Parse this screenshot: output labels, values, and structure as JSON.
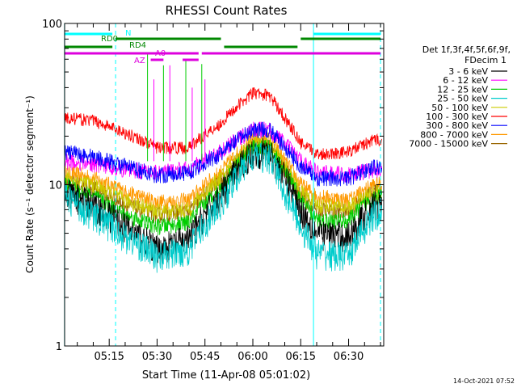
{
  "chart_data": {
    "type": "line",
    "title": "RHESSI Count Rates",
    "xlabel": "Start Time (11-Apr-08 05:01:02)",
    "ylabel": "Count Rate (s⁻¹ detector segment⁻¹)",
    "y_scale": "log",
    "ylim": [
      1,
      100
    ],
    "y_tick_labels": [
      "1",
      "10",
      "100"
    ],
    "x_range": [
      "05:01",
      "06:41"
    ],
    "x_tick_labels": [
      "05:15",
      "05:30",
      "05:45",
      "06:00",
      "06:15",
      "06:30"
    ],
    "legend_title": [
      "Det 1f,3f,4f,5f,6f,9f,",
      "FDecim 1"
    ],
    "legend_placement": "right",
    "series": [
      {
        "name": "3 - 6 keV",
        "color": "#000000",
        "x": [
          "05:01",
          "05:10",
          "05:20",
          "05:30",
          "05:40",
          "05:50",
          "06:00",
          "06:05",
          "06:10",
          "06:15",
          "06:20",
          "06:30",
          "06:38"
        ],
        "y": [
          9.0,
          7.5,
          5.5,
          4.0,
          4.6,
          8.5,
          16,
          16,
          11,
          7.0,
          5.0,
          4.8,
          7.5
        ]
      },
      {
        "name": "6 - 12 keV",
        "color": "#ff00ff",
        "x": [
          "05:01",
          "05:10",
          "05:20",
          "05:30",
          "05:40",
          "05:50",
          "06:00",
          "06:05",
          "06:10",
          "06:15",
          "06:20",
          "06:30",
          "06:38"
        ],
        "y": [
          14,
          13.5,
          12.5,
          12,
          12.5,
          16,
          22,
          22,
          18,
          14,
          12,
          11.5,
          12.5
        ]
      },
      {
        "name": "12 - 25 keV",
        "color": "#00cc00",
        "x": [
          "05:01",
          "05:10",
          "05:20",
          "05:30",
          "05:40",
          "05:50",
          "06:00",
          "06:05",
          "06:10",
          "06:15",
          "06:20",
          "06:30",
          "06:38"
        ],
        "y": [
          10,
          8.5,
          6.5,
          5.5,
          5.8,
          9.5,
          17,
          17,
          12,
          8.0,
          6.0,
          6.0,
          8.5
        ]
      },
      {
        "name": "25 - 50 keV",
        "color": "#00cccc",
        "x": [
          "05:01",
          "05:10",
          "05:20",
          "05:30",
          "05:40",
          "05:50",
          "06:00",
          "06:05",
          "06:10",
          "06:15",
          "06:20",
          "06:30",
          "06:38"
        ],
        "y": [
          8.5,
          6.5,
          4.8,
          3.6,
          4.0,
          7.5,
          15,
          15,
          9.0,
          5.5,
          3.8,
          3.6,
          6.5
        ]
      },
      {
        "name": "50 - 100 keV",
        "color": "#cccc00",
        "x": [
          "05:01",
          "05:10",
          "05:20",
          "05:30",
          "05:40",
          "05:50",
          "06:00",
          "06:05",
          "06:10",
          "06:15",
          "06:20",
          "06:30",
          "06:38"
        ],
        "y": [
          11,
          10,
          8.0,
          6.8,
          7.0,
          11,
          18,
          18,
          13,
          9.0,
          7.5,
          7.2,
          9.0
        ]
      },
      {
        "name": "100 - 300 keV",
        "color": "#ff0000",
        "x": [
          "05:01",
          "05:10",
          "05:20",
          "05:30",
          "05:40",
          "05:50",
          "06:00",
          "06:05",
          "06:10",
          "06:15",
          "06:20",
          "06:30",
          "06:38"
        ],
        "y": [
          26,
          25,
          21,
          17,
          17,
          24,
          37,
          36,
          26,
          18,
          15.5,
          16,
          19
        ]
      },
      {
        "name": "300 - 800 keV",
        "color": "#0000ff",
        "x": [
          "05:01",
          "05:10",
          "05:20",
          "05:30",
          "05:40",
          "05:50",
          "06:00",
          "06:05",
          "06:10",
          "06:15",
          "06:20",
          "06:30",
          "06:38"
        ],
        "y": [
          16,
          15,
          13,
          11.5,
          12,
          15.5,
          22,
          22,
          17,
          13,
          11,
          11,
          13
        ]
      },
      {
        "name": "800 - 7000 keV",
        "color": "#ff9900",
        "x": [
          "05:01",
          "05:10",
          "05:20",
          "05:30",
          "05:40",
          "05:50",
          "06:00",
          "06:05",
          "06:10",
          "06:15",
          "06:20",
          "06:30",
          "06:38"
        ],
        "y": [
          12,
          11,
          9.0,
          7.8,
          8.0,
          12,
          19,
          19,
          14,
          10,
          8.5,
          8.0,
          10
        ]
      },
      {
        "name": "7000 - 15000 keV",
        "color": "#996600",
        "x": [
          "05:01",
          "05:10",
          "05:20",
          "05:30",
          "05:40",
          "05:50",
          "06:00",
          "06:05",
          "06:10",
          "06:15",
          "06:20",
          "06:30",
          "06:38"
        ],
        "y": [
          10.5,
          9.5,
          7.5,
          6.5,
          6.8,
          10.5,
          17.5,
          17.5,
          12.5,
          8.5,
          7.0,
          6.8,
          9.0
        ]
      }
    ],
    "spike_lines": [
      {
        "color": "#00cc00",
        "x": [
          "05:27",
          "05:32",
          "05:39",
          "05:44"
        ],
        "y_low": [
          14,
          14,
          14,
          14
        ],
        "y_high": [
          65,
          55,
          60,
          56
        ]
      },
      {
        "color": "#ff00ff",
        "x": [
          "05:29",
          "05:34",
          "05:41",
          "05:45"
        ],
        "y_low": [
          14,
          14,
          14,
          14
        ],
        "y_high": [
          45,
          55,
          40,
          45
        ]
      }
    ],
    "state_bars": [
      {
        "label": "N",
        "color": "#00ffff",
        "segments": [
          [
            "05:01",
            "05:16"
          ],
          [
            "06:19",
            "06:40"
          ]
        ]
      },
      {
        "label": "RD0",
        "color": "#008800",
        "segments": [
          [
            "05:17",
            "05:50"
          ],
          [
            "06:15",
            "06:40"
          ]
        ]
      },
      {
        "label": "RD4",
        "color": "#008800",
        "segments": [
          [
            "05:01",
            "05:16"
          ],
          [
            "05:51",
            "06:14"
          ]
        ]
      },
      {
        "label": "A0",
        "color": "#dd00dd",
        "segments": [
          [
            "05:01",
            "05:43"
          ],
          [
            "05:44",
            "06:40"
          ]
        ]
      },
      {
        "label": "AZ",
        "color": "#dd00dd",
        "segments": [
          [
            "05:28",
            "05:32"
          ],
          [
            "05:38",
            "05:43"
          ]
        ]
      }
    ],
    "vertical_markers": [
      {
        "x": "05:01",
        "style": "solid",
        "color": "#00ffff"
      },
      {
        "x": "05:17",
        "style": "dashed",
        "color": "#00ffff"
      },
      {
        "x": "06:19",
        "style": "solid",
        "color": "#00ffff"
      },
      {
        "x": "06:40",
        "style": "dashed",
        "color": "#00ffff"
      }
    ]
  },
  "footer_timestamp": "14-Oct-2021 07:52"
}
